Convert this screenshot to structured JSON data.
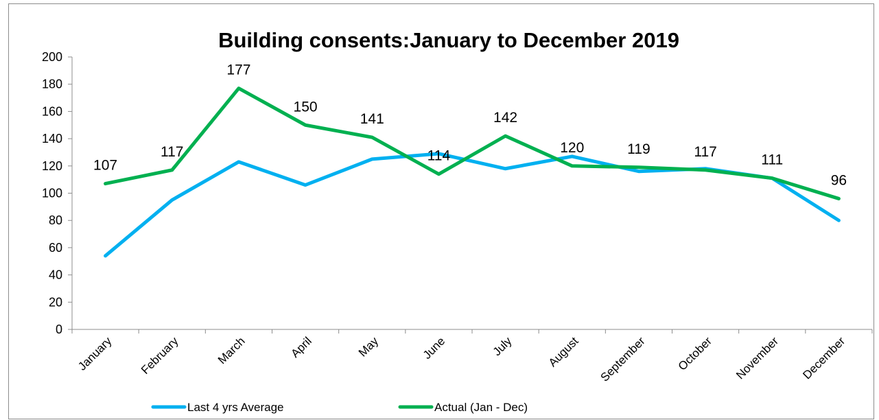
{
  "chart_data": {
    "type": "line",
    "title": "Building consents:January to December 2019",
    "xlabel": "",
    "ylabel": "",
    "categories": [
      "January",
      "February",
      "March",
      "April",
      "May",
      "June",
      "July",
      "August",
      "September",
      "October",
      "November",
      "December"
    ],
    "ylim": [
      0,
      200
    ],
    "yticks": [
      "0",
      "20",
      "40",
      "60",
      "80",
      "100",
      "120",
      "140",
      "160",
      "180",
      "200"
    ],
    "grid": false,
    "legend_position": "bottom",
    "series": [
      {
        "name": "Last 4 yrs Average",
        "color": "#00b0f0",
        "values": [
          54,
          95,
          123,
          106,
          125,
          129,
          118,
          127,
          116,
          118,
          111,
          80
        ],
        "data_labels": false
      },
      {
        "name": "Actual (Jan - Dec)",
        "color": "#00b050",
        "values": [
          107,
          117,
          177,
          150,
          141,
          114,
          142,
          120,
          119,
          117,
          111,
          96
        ],
        "data_labels": true
      }
    ]
  }
}
